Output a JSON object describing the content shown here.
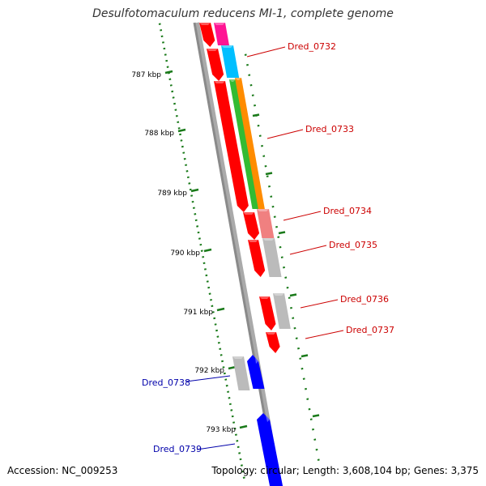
{
  "title": "Desulfotomaculum reducens MI-1, complete genome",
  "footer": {
    "accession": "Accession: NC_009253",
    "topology": "Topology: circular; Length: 3,608,104 bp; Genes: 3,375"
  },
  "colors": {
    "backbone": "#8a8a8a",
    "tick": "#1a7a1a",
    "forward_label": "#cc0000",
    "reverse_label": "#0000aa"
  },
  "scale_labels": [
    "787 kbp",
    "788 kbp",
    "789 kbp",
    "790 kbp",
    "791 kbp",
    "792 kbp",
    "793 kbp"
  ],
  "genes": [
    {
      "label": "Dred_0732",
      "strand": "forward",
      "color": "#cc0000"
    },
    {
      "label": "Dred_0733",
      "strand": "forward",
      "color": "#cc0000"
    },
    {
      "label": "Dred_0734",
      "strand": "forward",
      "color": "#cc0000"
    },
    {
      "label": "Dred_0735",
      "strand": "forward",
      "color": "#cc0000"
    },
    {
      "label": "Dred_0736",
      "strand": "forward",
      "color": "#cc0000"
    },
    {
      "label": "Dred_0737",
      "strand": "forward",
      "color": "#cc0000"
    },
    {
      "label": "Dred_0738",
      "strand": "reverse",
      "color": "#0000aa"
    },
    {
      "label": "Dred_0739",
      "strand": "reverse",
      "color": "#0000aa"
    }
  ],
  "feature_colors": [
    "#ff0000",
    "#ff1493",
    "#00bfff",
    "#ff8c00",
    "#33bb33",
    "#f08080",
    "#bbbbbb",
    "#0000ff"
  ]
}
